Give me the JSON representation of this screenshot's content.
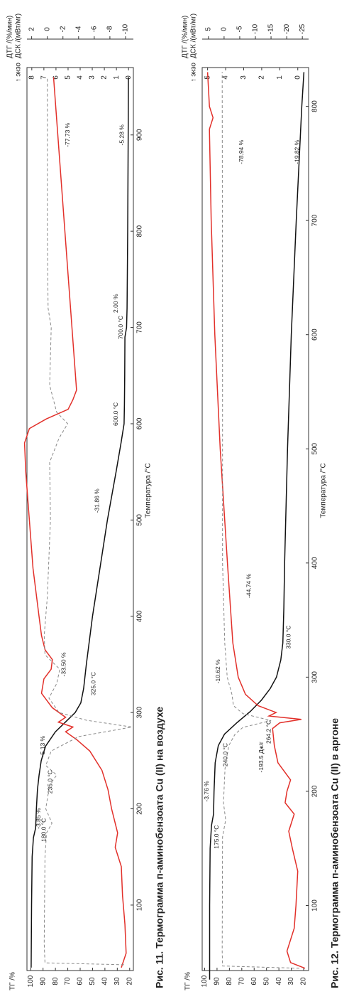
{
  "chart_data": [
    {
      "type": "line",
      "title": "Рис. 11. Термограмма п-аминобензоата Cu (II) на воздухе",
      "xlabel": "Температура /°C",
      "ylabel": "ТГ /%",
      "y2label": "ДСК /(мВт/мг)",
      "y3label": "ДТГ /(%/мин)",
      "exo": "↑ экзо",
      "xlim": [
        32,
        970
      ],
      "xticks": [
        100,
        200,
        300,
        400,
        500,
        600,
        700,
        800,
        900
      ],
      "ylim": [
        103,
        17
      ],
      "yticks": [
        100,
        90,
        80,
        70,
        60,
        50,
        40,
        30,
        20
      ],
      "y2lim": [
        8.4,
        -0.4
      ],
      "y2ticks": [
        8,
        7,
        6,
        5,
        4,
        3,
        2,
        1,
        0
      ],
      "y3lim": [
        2.6,
        -11
      ],
      "y3ticks": [
        2,
        0,
        -2,
        -4,
        -6,
        -8,
        -10
      ],
      "series": [
        {
          "name": "ТГ",
          "axis": "y",
          "color": "#111111",
          "style": "solid",
          "x": [
            35,
            100,
            150,
            170,
            180,
            200,
            220,
            235,
            250,
            265,
            280,
            290,
            300,
            310,
            325,
            350,
            400,
            450,
            500,
            550,
            580,
            600,
            620,
            650,
            690,
            700,
            720,
            800,
            900,
            960
          ],
          "values": [
            99.6,
            99.3,
            98.8,
            97.8,
            96,
            95.4,
            94.5,
            93.2,
            91.5,
            88,
            80,
            72,
            64,
            59.5,
            57.2,
            55,
            50,
            44,
            38,
            31,
            27,
            24.5,
            24.2,
            24,
            23.8,
            22.5,
            22.1,
            21.6,
            21.2,
            21
          ]
        },
        {
          "name": "ДСК",
          "axis": "y2",
          "color": "#e2302a",
          "style": "solid",
          "x": [
            35,
            50,
            80,
            110,
            140,
            160,
            175,
            200,
            220,
            240,
            260,
            272,
            280,
            285,
            290,
            295,
            305,
            320,
            335,
            345,
            355,
            365,
            380,
            400,
            450,
            500,
            550,
            580,
            595,
            605,
            615,
            625,
            635,
            960
          ],
          "values": [
            0.6,
            0.2,
            0.3,
            0.5,
            0.6,
            1.1,
            0.9,
            1.4,
            1.7,
            2.2,
            3.2,
            4.3,
            5.2,
            4.6,
            5.8,
            5.2,
            6.3,
            7.2,
            7.0,
            6.4,
            6.3,
            6.9,
            7.2,
            7.4,
            7.9,
            8.2,
            8.5,
            8.6,
            8.2,
            6.8,
            5.0,
            4.6,
            4.3,
            6.2
          ]
        },
        {
          "name": "ДТГ",
          "axis": "y3",
          "color": "#8a8a8a",
          "style": "dashed",
          "x": [
            38,
            40,
            60,
            150,
            175,
            185,
            200,
            225,
            235,
            245,
            260,
            275,
            285,
            292,
            300,
            315,
            330,
            345,
            360,
            380,
            420,
            500,
            560,
            585,
            600,
            612,
            640,
            700,
            720,
            800,
            960
          ],
          "values": [
            -9.8,
            0.3,
            0.4,
            0.3,
            0.1,
            -0.6,
            0.2,
            -0.3,
            -1.2,
            0.2,
            -0.5,
            -4,
            -10.8,
            -5,
            -1.5,
            -0.2,
            -1.2,
            -1.6,
            0.3,
            0.4,
            0,
            -0.4,
            -0.3,
            -1.5,
            -2.6,
            -1.2,
            -0.3,
            -0.5,
            -0.1,
            0,
            0
          ]
        }
      ],
      "annotations": [
        {
          "text": "-3.85 %",
          "color": "#222222"
        },
        {
          "text": "180.0 °C",
          "color": "#222222"
        },
        {
          "text": "-5.13 %",
          "color": "#222222"
        },
        {
          "text": "235.0 °C",
          "color": "#222222"
        },
        {
          "text": "-33.50 %",
          "color": "#222222"
        },
        {
          "text": "325.0 °C",
          "color": "#222222"
        },
        {
          "text": "-31.86 %",
          "color": "#222222"
        },
        {
          "text": "600.0 °C",
          "color": "#222222"
        },
        {
          "text": "2.00 %",
          "color": "#222222"
        },
        {
          "text": "700.0 °C",
          "color": "#222222"
        },
        {
          "text": "-77.73 %",
          "color": "#222222"
        },
        {
          "text": "-5.28 %",
          "color": "#222222"
        }
      ]
    },
    {
      "type": "line",
      "title": "Рис. 12. Термограмма п-аминобензоата Cu (II)  в аргоне",
      "xlabel": "Температура /°C",
      "ylabel": "ТГ /%",
      "y2label": "ДСК /(мВт/мг)",
      "y3label": "ДТГ /(%/мин)",
      "exo": "↑ экзо",
      "xlim": [
        43,
        834
      ],
      "xticks": [
        100,
        200,
        300,
        400,
        500,
        600,
        700,
        800
      ],
      "ylim": [
        102,
        16
      ],
      "yticks": [
        100,
        90,
        80,
        70,
        60,
        50,
        40,
        30,
        20
      ],
      "y2lim": [
        5.3,
        -0.6
      ],
      "y2ticks": [
        5,
        4,
        3,
        2,
        1,
        0
      ],
      "y3lim": [
        7,
        -27
      ],
      "y3ticks": [
        5,
        0,
        -5,
        -10,
        -15,
        -20,
        -25
      ],
      "series": [
        {
          "name": "ТГ",
          "axis": "y",
          "color": "#111111",
          "style": "solid",
          "x": [
            35,
            100,
            150,
            170,
            180,
            200,
            225,
            240,
            250,
            260,
            270,
            280,
            290,
            300,
            315,
            330,
            360,
            400,
            500,
            600,
            700,
            800,
            830
          ],
          "values": [
            96,
            96,
            95.6,
            94.5,
            92.8,
            92.4,
            91.5,
            89,
            84,
            74,
            63,
            54,
            47,
            42,
            38.5,
            36.8,
            36,
            35.4,
            33,
            30,
            26,
            21.5,
            19.8
          ]
        },
        {
          "name": "ДСК",
          "axis": "y2",
          "color": "#e2302a",
          "style": "solid",
          "x": [
            45,
            50,
            60,
            80,
            100,
            130,
            150,
            165,
            180,
            190,
            200,
            210,
            225,
            240,
            255,
            260,
            263,
            266,
            269,
            275,
            285,
            300,
            330,
            400,
            500,
            600,
            700,
            780,
            790,
            800,
            830
          ],
          "values": [
            -0.4,
            0.4,
            0.6,
            0.2,
            0.1,
            0.0,
            0.3,
            0.5,
            0.2,
            0.7,
            0.6,
            0.4,
            1.1,
            1.3,
            1.4,
            1.0,
            -0.2,
            1.6,
            1.2,
            2.2,
            2.9,
            3.3,
            3.6,
            3.9,
            4.3,
            4.6,
            4.8,
            4.9,
            4.7,
            4.9,
            5.0
          ]
        },
        {
          "name": "ДТГ",
          "axis": "y3",
          "color": "#8a8a8a",
          "style": "dashed",
          "x": [
            45,
            47,
            60,
            160,
            175,
            190,
            220,
            240,
            250,
            256,
            262,
            268,
            275,
            285,
            300,
            330,
            400,
            600,
            830
          ],
          "values": [
            -24,
            0.5,
            0.6,
            0.5,
            -0.5,
            0.2,
            -0.3,
            -1.5,
            -3.5,
            -6,
            -15,
            -6,
            -3,
            -2.5,
            -1,
            -0.2,
            0.5,
            0.5,
            0.6
          ]
        }
      ],
      "annotations": [
        {
          "text": "-3.76 %",
          "color": "#222222"
        },
        {
          "text": "175.0 °C",
          "color": "#222222"
        },
        {
          "text": "-10.62 %",
          "color": "#222222"
        },
        {
          "text": "240.0 °C",
          "color": "#222222"
        },
        {
          "text": "-44.74 %",
          "color": "#222222"
        },
        {
          "text": "330.0 °C",
          "color": "#222222"
        },
        {
          "text": "-193.5 Дж/г",
          "color": "#e2302a"
        },
        {
          "text": "264.2 °C",
          "color": "#e2302a"
        },
        {
          "text": "-78.94 %",
          "color": "#222222"
        },
        {
          "text": "-19.82 %",
          "color": "#222222"
        }
      ]
    }
  ]
}
